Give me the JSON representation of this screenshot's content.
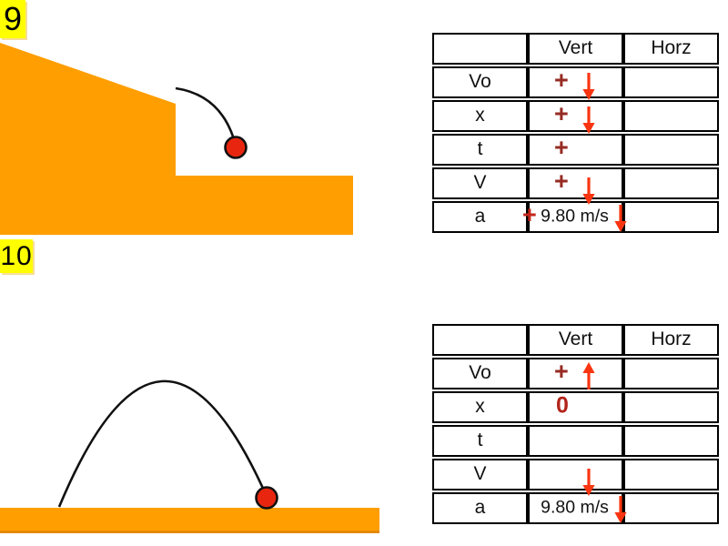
{
  "slide": {
    "background": "#ffffff"
  },
  "colors": {
    "orange": "#FF9E00",
    "orange_dark": "#E68900",
    "ball": "#E8260F",
    "outline_black": "#111111",
    "label_bg": "#FFFF00",
    "label_text": "#000000",
    "plus_dark": "#962B23",
    "plus_bright": "#C3271B",
    "zero_red": "#B2241A",
    "arrow_red": "#F93511",
    "table_border": "#000000",
    "text_black": "#111111"
  },
  "labels": {
    "problem9": "9",
    "problem10": "10"
  },
  "table_headers": {
    "col1": "",
    "col2": "Vert",
    "col3": "Horz"
  },
  "symbols": {
    "plus": "+",
    "down_arrow": "down",
    "up_arrow": "up"
  },
  "table9": {
    "name": "problem9-table",
    "rows": [
      {
        "label": "Vo",
        "vert": {
          "plus": "+",
          "arrow": "down"
        },
        "horz": ""
      },
      {
        "label": "x",
        "vert": {
          "plus": "+",
          "arrow": "down"
        },
        "horz": ""
      },
      {
        "label": "t",
        "vert": {
          "plus": "+"
        },
        "horz": ""
      },
      {
        "label": "V",
        "vert": {
          "plus": "+",
          "arrow": "down",
          "arrow_pos": "low"
        },
        "horz": ""
      },
      {
        "label": "a",
        "vert": {
          "plus": "+",
          "plus_at_edge": true,
          "plus_color": "bright",
          "text": "9.80 m/s",
          "arrow": "down",
          "arrow_at_edge": true
        },
        "horz": ""
      }
    ]
  },
  "table10": {
    "name": "problem10-table",
    "rows": [
      {
        "label": "Vo",
        "vert": {
          "plus": "+",
          "arrow": "up",
          "arrow_pos": "up"
        },
        "horz": ""
      },
      {
        "label": "x",
        "vert": {
          "value": "0"
        },
        "horz": ""
      },
      {
        "label": "t",
        "vert": {},
        "horz": ""
      },
      {
        "label": "V",
        "vert": {
          "arrow": "down",
          "arrow_pos": "low"
        },
        "horz": ""
      },
      {
        "label": "a",
        "vert": {
          "text": "9.80 m/s",
          "arrow": "down",
          "arrow_at_edge": true
        },
        "horz": ""
      }
    ]
  }
}
